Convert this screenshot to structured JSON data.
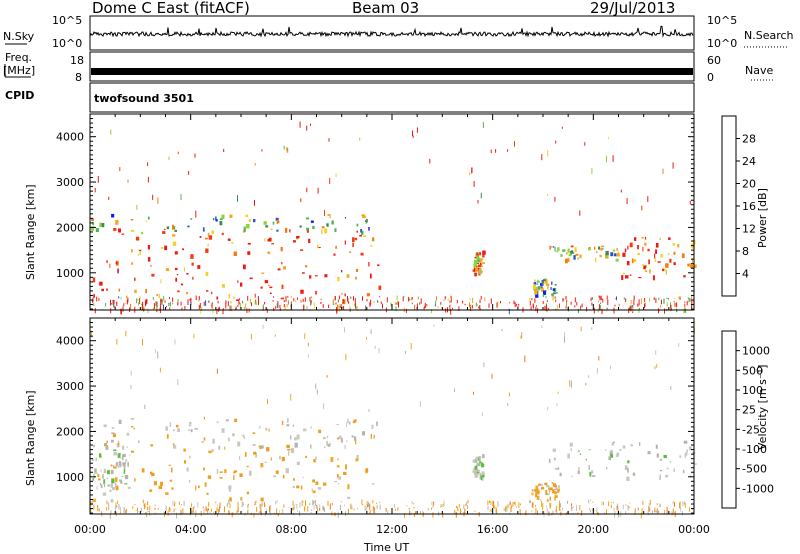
{
  "header": {
    "station": "Dome C East (fitACF)",
    "beam": "Beam 03",
    "date": "29/Jul/2013"
  },
  "top_panels": {
    "nsky_label": "N.Sky",
    "nsky_ticks": [
      "10^5",
      "10^0"
    ],
    "nsearch_label": "N.Search",
    "nsearch_ticks": [
      "10^5",
      "10^0"
    ],
    "freq_label_1": "Freq.",
    "freq_label_2": "[MHz]",
    "freq_ticks": [
      "18",
      "8"
    ],
    "nave_label": "Nave",
    "nave_ticks": [
      "60",
      "0"
    ],
    "cpid_label": "CPID",
    "cpid_value": "twofsound 3501"
  },
  "colors": {
    "power_scale": [
      "#0a1af0",
      "#2c53c4",
      "#3d8a4e",
      "#4fb25a",
      "#8ad43c",
      "#f0d22a",
      "#f5a623",
      "#f47a12",
      "#f43a10",
      "#ee1a12"
    ],
    "velocity_scale": [
      "#ee1a12",
      "#f43a10",
      "#f47a12",
      "#f5a623",
      "#f29b1c",
      "#c8c8c0",
      "#b4b4ac",
      "#56c03a",
      "#3d8a4e",
      "#2c53c4",
      "#1a30b0"
    ]
  },
  "chart_data": [
    {
      "type": "heatmap",
      "panel": "power",
      "ylabel": "Slant Range [km]",
      "x_ticks": [
        "00:00",
        "04:00",
        "08:00",
        "12:00",
        "16:00",
        "20:00",
        "00:00"
      ],
      "y_ticks": [
        "1000",
        "2000",
        "3000",
        "4000"
      ],
      "ylim": [
        180,
        4500
      ],
      "xlim_hours": [
        0,
        24
      ],
      "colorbar_label": "Power [dB]",
      "colorbar_ticks": [
        "28",
        "24",
        "20",
        "16",
        "12",
        "8",
        "4"
      ],
      "colorbar_range": [
        0,
        30
      ],
      "scatter_regions": [
        {
          "t_start": 0.0,
          "t_end": 11.5,
          "r_min": 400,
          "r_max": 2000,
          "value": 27
        },
        {
          "t_start": 0.0,
          "t_end": 11.5,
          "r_min": 1900,
          "r_max": 2300,
          "value": 12
        },
        {
          "t_start": 15.2,
          "t_end": 15.6,
          "r_min": 1000,
          "r_max": 1500,
          "value": 22
        },
        {
          "t_start": 17.5,
          "t_end": 18.6,
          "r_min": 500,
          "r_max": 900,
          "value": 10
        },
        {
          "t_start": 18.2,
          "t_end": 21.0,
          "r_min": 1300,
          "r_max": 1600,
          "value": 14
        },
        {
          "t_start": 21.0,
          "t_end": 24.0,
          "r_min": 900,
          "r_max": 1800,
          "value": 26
        }
      ]
    },
    {
      "type": "heatmap",
      "panel": "velocity",
      "ylabel": "Slant Range [km]",
      "xlabel": "Time UT",
      "x_ticks": [
        "00:00",
        "04:00",
        "08:00",
        "12:00",
        "16:00",
        "20:00",
        "00:00"
      ],
      "y_ticks": [
        "1000",
        "2000",
        "3000",
        "4000"
      ],
      "ylim": [
        180,
        4500
      ],
      "xlim_hours": [
        0,
        24
      ],
      "colorbar_label": "Velocity [m s⁻¹]",
      "colorbar_ticks": [
        "1000",
        "500",
        "100",
        "25",
        "-25",
        "-100",
        "-500",
        "-1000"
      ],
      "colorbar_range": [
        -1000,
        1000
      ],
      "scatter_regions": [
        {
          "t_start": 0.0,
          "t_end": 11.5,
          "r_min": 500,
          "r_max": 1700,
          "value": -150
        },
        {
          "t_start": 0.0,
          "t_end": 11.5,
          "r_min": 1600,
          "r_max": 2300,
          "value": 0
        },
        {
          "t_start": 0.0,
          "t_end": 1.5,
          "r_min": 800,
          "r_max": 1700,
          "value": 200
        },
        {
          "t_start": 15.2,
          "t_end": 15.6,
          "r_min": 1000,
          "r_max": 1500,
          "value": 150
        },
        {
          "t_start": 17.5,
          "t_end": 18.6,
          "r_min": 500,
          "r_max": 900,
          "value": -200
        },
        {
          "t_start": 18.2,
          "t_end": 24.0,
          "r_min": 1000,
          "r_max": 1800,
          "value": 150
        }
      ]
    }
  ]
}
